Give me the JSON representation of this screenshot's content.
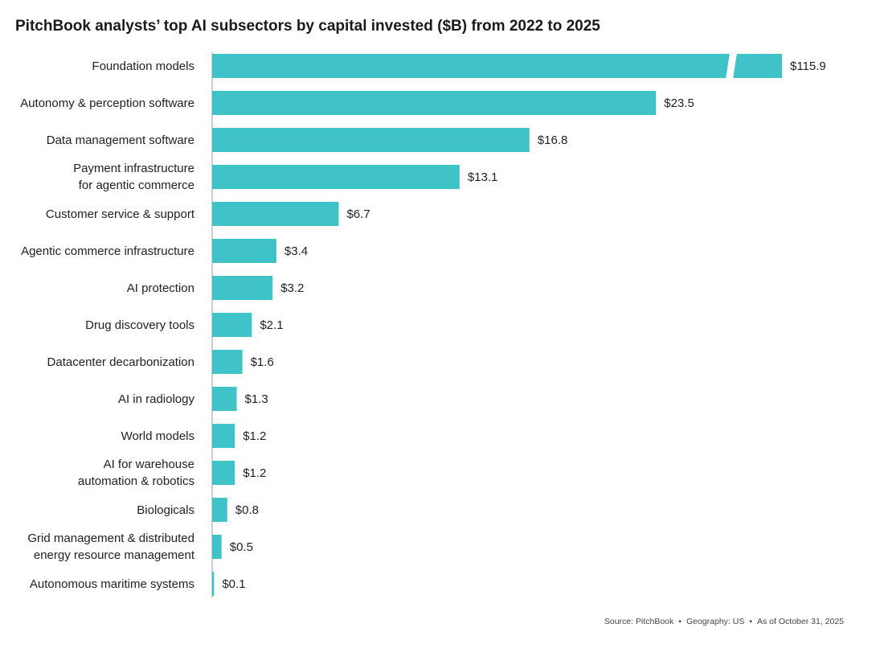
{
  "chart_data": {
    "type": "bar",
    "orientation": "horizontal",
    "title": "PitchBook analysts’ top AI subsectors by capital invested ($B) from 2022 to 2025",
    "categories": [
      [
        "Foundation models"
      ],
      [
        "Autonomy & perception software"
      ],
      [
        "Data management software"
      ],
      [
        "Payment infrastructure",
        "for agentic commerce"
      ],
      [
        "Customer service & support"
      ],
      [
        "Agentic commerce infrastructure"
      ],
      [
        "AI protection"
      ],
      [
        "Drug discovery tools"
      ],
      [
        "Datacenter decarbonization"
      ],
      [
        "AI in radiology"
      ],
      [
        "World models"
      ],
      [
        "AI for warehouse",
        "automation & robotics"
      ],
      [
        "Biologicals"
      ],
      [
        "Grid management & distributed",
        "energy resource management"
      ],
      [
        "Autonomous maritime systems"
      ]
    ],
    "values": [
      115.9,
      23.5,
      16.8,
      13.1,
      6.7,
      3.4,
      3.2,
      2.1,
      1.6,
      1.3,
      1.2,
      1.2,
      0.8,
      0.5,
      0.1
    ],
    "value_labels": [
      "$115.9",
      "$23.5",
      "$16.8",
      "$13.1",
      "$6.7",
      "$3.4",
      "$3.2",
      "$2.1",
      "$1.6",
      "$1.3",
      "$1.2",
      "$1.2",
      "$0.8",
      "$0.5",
      "$0.1"
    ],
    "axis_break": true,
    "bar_color": "#40c3c8",
    "grid": false,
    "legend": "none"
  },
  "footer": {
    "source": "Source: PitchBook",
    "separator": "•",
    "geography": "Geography: US",
    "as_of": "As of October 31, 2025"
  }
}
